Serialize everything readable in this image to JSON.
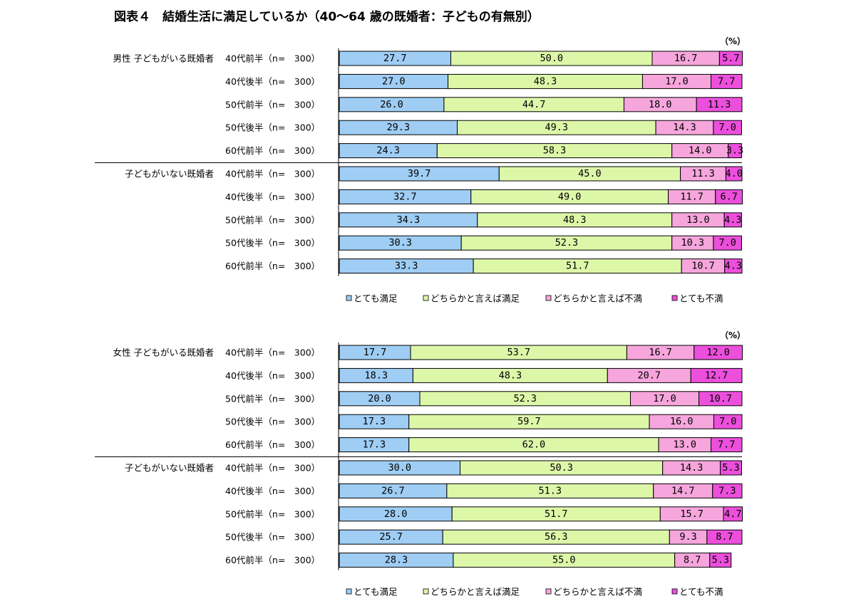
{
  "title": "図表４　結婚生活に満足しているか（40～64 歳の既婚者：子どもの有無別）",
  "unit_label": "（%）",
  "colors": {
    "very_satisfied": "#9fcdf4",
    "somewhat_satisfied": "#ddf7a9",
    "somewhat_dissatisfied": "#f6a6dc",
    "very_dissatisfied": "#ec4fdc"
  },
  "chart_data": [
    {
      "type": "bar",
      "orientation": "horizontal",
      "stacked": true,
      "unit": "%",
      "xlim": [
        0,
        100
      ],
      "legend_position": "bottom",
      "groups": [
        {
          "label": "男性 子どもがいる既婚者",
          "categories": [
            "40代前半（n=　300）",
            "40代後半（n=　300）",
            "50代前半（n=　300）",
            "50代後半（n=　300）",
            "60代前半（n=　300）"
          ]
        },
        {
          "label": "子どもがいない既婚者",
          "categories": [
            "40代前半（n=　300）",
            "40代後半（n=　300）",
            "50代前半（n=　300）",
            "50代後半（n=　300）",
            "60代前半（n=　300）"
          ]
        }
      ],
      "series": [
        {
          "name": "とても満足",
          "values": [
            27.7,
            27.0,
            26.0,
            29.3,
            24.3,
            39.7,
            32.7,
            34.3,
            30.3,
            33.3
          ]
        },
        {
          "name": "どちらかと言えば満足",
          "values": [
            50.0,
            48.3,
            44.7,
            49.3,
            58.3,
            45.0,
            49.0,
            48.3,
            52.3,
            51.7
          ]
        },
        {
          "name": "どちらかと言えば不満",
          "values": [
            16.7,
            17.0,
            18.0,
            14.3,
            14.0,
            11.3,
            11.7,
            13.0,
            10.3,
            10.7
          ]
        },
        {
          "name": "とても不満",
          "values": [
            5.7,
            7.7,
            11.3,
            7.0,
            3.3,
            4.0,
            6.7,
            4.3,
            7.0,
            4.3
          ]
        }
      ]
    },
    {
      "type": "bar",
      "orientation": "horizontal",
      "stacked": true,
      "unit": "%",
      "xlim": [
        0,
        100
      ],
      "legend_position": "bottom",
      "groups": [
        {
          "label": "女性 子どもがいる既婚者",
          "categories": [
            "40代前半（n=　300）",
            "40代後半（n=　300）",
            "50代前半（n=　300）",
            "50代後半（n=　300）",
            "60代前半（n=　300）"
          ]
        },
        {
          "label": "子どもがいない既婚者",
          "categories": [
            "40代前半（n=　300）",
            "40代後半（n=　300）",
            "50代前半（n=　300）",
            "50代後半（n=　300）",
            "60代前半（n=　300）"
          ]
        }
      ],
      "series": [
        {
          "name": "とても満足",
          "values": [
            17.7,
            18.3,
            20.0,
            17.3,
            17.3,
            30.0,
            26.7,
            28.0,
            25.7,
            28.3
          ]
        },
        {
          "name": "どちらかと言えば満足",
          "values": [
            53.7,
            48.3,
            52.3,
            59.7,
            62.0,
            50.3,
            51.3,
            51.7,
            56.3,
            55.0
          ]
        },
        {
          "name": "どちらかと言えば不満",
          "values": [
            16.7,
            20.7,
            17.0,
            16.0,
            13.0,
            14.3,
            14.7,
            15.7,
            9.3,
            8.7
          ]
        },
        {
          "name": "とても不満",
          "values": [
            12.0,
            12.7,
            10.7,
            7.0,
            7.7,
            5.3,
            7.3,
            4.7,
            8.7,
            5.3
          ]
        }
      ]
    }
  ]
}
